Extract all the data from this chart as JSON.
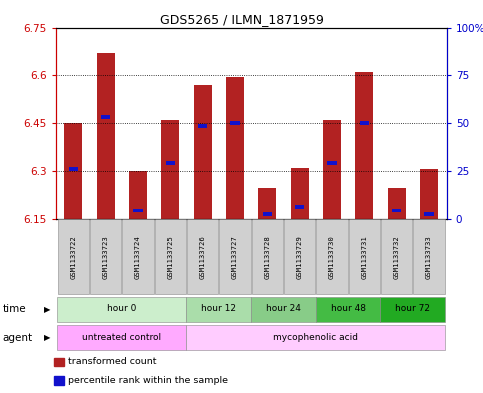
{
  "title": "GDS5265 / ILMN_1871959",
  "samples": [
    "GSM1133722",
    "GSM1133723",
    "GSM1133724",
    "GSM1133725",
    "GSM1133726",
    "GSM1133727",
    "GSM1133728",
    "GSM1133729",
    "GSM1133730",
    "GSM1133731",
    "GSM1133732",
    "GSM1133733"
  ],
  "bar_tops": [
    6.45,
    6.67,
    6.3,
    6.46,
    6.57,
    6.595,
    6.245,
    6.31,
    6.46,
    6.61,
    6.245,
    6.305
  ],
  "bar_bottoms": [
    6.15,
    6.15,
    6.15,
    6.15,
    6.15,
    6.15,
    6.15,
    6.15,
    6.15,
    6.15,
    6.15,
    6.15
  ],
  "blue_values": [
    6.305,
    6.47,
    6.175,
    6.325,
    6.44,
    6.45,
    6.165,
    6.185,
    6.325,
    6.45,
    6.175,
    6.165
  ],
  "ylim_left": [
    6.15,
    6.75
  ],
  "ylim_right": [
    0,
    100
  ],
  "yticks_left": [
    6.15,
    6.3,
    6.45,
    6.6,
    6.75
  ],
  "yticks_right": [
    0,
    25,
    50,
    75,
    100
  ],
  "left_tick_labels": [
    "6.15",
    "6.3",
    "6.45",
    "6.6",
    "6.75"
  ],
  "right_tick_labels": [
    "0",
    "25",
    "50",
    "75",
    "100%"
  ],
  "bar_color": "#B22222",
  "blue_color": "#1111CC",
  "time_groups": [
    {
      "label": "hour 0",
      "start": 0,
      "end": 4,
      "color": "#cceecc"
    },
    {
      "label": "hour 12",
      "start": 4,
      "end": 6,
      "color": "#aaddaa"
    },
    {
      "label": "hour 24",
      "start": 6,
      "end": 8,
      "color": "#88cc88"
    },
    {
      "label": "hour 48",
      "start": 8,
      "end": 10,
      "color": "#44bb44"
    },
    {
      "label": "hour 72",
      "start": 10,
      "end": 12,
      "color": "#22aa22"
    }
  ],
  "agent_groups": [
    {
      "label": "untreated control",
      "start": 0,
      "end": 4,
      "color": "#ffaaff"
    },
    {
      "label": "mycophenolic acid",
      "start": 4,
      "end": 12,
      "color": "#ffccff"
    }
  ],
  "legend": [
    {
      "label": "transformed count",
      "color": "#B22222"
    },
    {
      "label": "percentile rank within the sample",
      "color": "#1111CC"
    }
  ],
  "background_color": "#ffffff",
  "left_axis_color": "#CC0000",
  "right_axis_color": "#0000CC"
}
